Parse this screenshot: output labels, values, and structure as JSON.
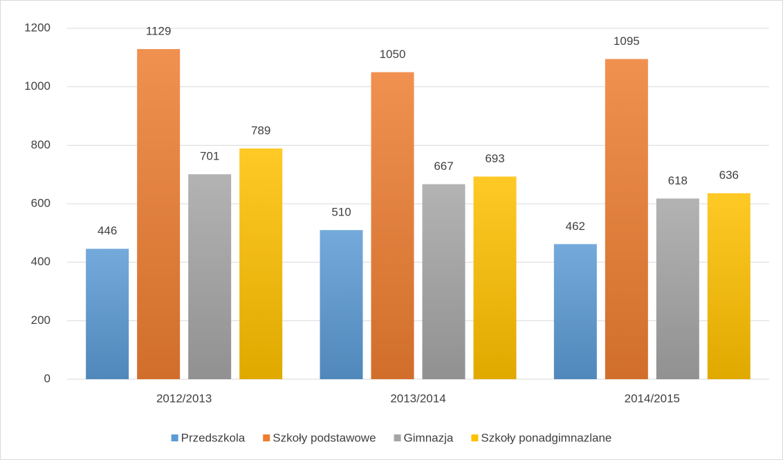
{
  "chart_data": {
    "type": "bar",
    "categories": [
      "2012/2013",
      "2013/2014",
      "2014/2015"
    ],
    "series": [
      {
        "name": "Przedszkola",
        "color": "#5b9bd5",
        "values": [
          446,
          510,
          462
        ]
      },
      {
        "name": "Szkoły podstawowe",
        "color": "#ed7d31",
        "values": [
          1129,
          1050,
          1095
        ]
      },
      {
        "name": "Gimnazja",
        "color": "#a5a5a5",
        "values": [
          701,
          667,
          618
        ]
      },
      {
        "name": "Szkoły ponadgimnazlane",
        "color": "#ffc000",
        "values": [
          789,
          693,
          636
        ]
      }
    ],
    "ylim": [
      0,
      1200
    ],
    "yticks": [
      0,
      200,
      400,
      600,
      800,
      1000,
      1200
    ],
    "grid": true,
    "legend": "bottom",
    "data_labels": true
  }
}
